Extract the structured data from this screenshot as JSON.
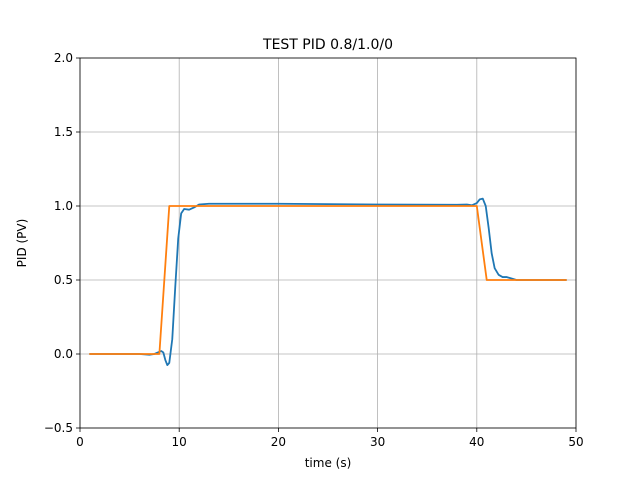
{
  "chart_data": {
    "type": "line",
    "title": "TEST PID 0.8/1.0/0",
    "xlabel": "time (s)",
    "ylabel": "PID (PV)",
    "xlim": [
      0,
      50
    ],
    "ylim": [
      -0.5,
      2.0
    ],
    "xticks": [
      0,
      10,
      20,
      30,
      40,
      50
    ],
    "xtick_labels": [
      "0",
      "10",
      "20",
      "30",
      "40",
      "50"
    ],
    "yticks": [
      -0.5,
      0.0,
      0.5,
      1.0,
      1.5,
      2.0
    ],
    "ytick_labels": [
      "−0.5",
      "0.0",
      "0.5",
      "1.0",
      "1.5",
      "2.0"
    ],
    "grid": true,
    "series": [
      {
        "color": "#1f77b4",
        "points": [
          [
            1,
            0.0
          ],
          [
            6,
            0.0
          ],
          [
            7,
            -0.005
          ],
          [
            7.5,
            0.0
          ],
          [
            8.0,
            0.015
          ],
          [
            8.2,
            0.02
          ],
          [
            8.4,
            0.01
          ],
          [
            8.6,
            -0.04
          ],
          [
            8.8,
            -0.075
          ],
          [
            9.0,
            -0.06
          ],
          [
            9.3,
            0.1
          ],
          [
            9.6,
            0.45
          ],
          [
            9.9,
            0.78
          ],
          [
            10.2,
            0.95
          ],
          [
            10.5,
            0.98
          ],
          [
            11.0,
            0.975
          ],
          [
            11.5,
            0.99
          ],
          [
            12.0,
            1.01
          ],
          [
            13.0,
            1.015
          ],
          [
            20.0,
            1.015
          ],
          [
            30.0,
            1.01
          ],
          [
            38.0,
            1.008
          ],
          [
            39.0,
            1.01
          ],
          [
            39.5,
            1.005
          ],
          [
            40.0,
            1.02
          ],
          [
            40.3,
            1.045
          ],
          [
            40.6,
            1.05
          ],
          [
            40.9,
            1.0
          ],
          [
            41.2,
            0.85
          ],
          [
            41.5,
            0.68
          ],
          [
            41.8,
            0.58
          ],
          [
            42.2,
            0.535
          ],
          [
            42.6,
            0.52
          ],
          [
            43.0,
            0.52
          ],
          [
            43.5,
            0.51
          ],
          [
            44.0,
            0.5
          ],
          [
            49,
            0.5
          ]
        ]
      },
      {
        "color": "#ff7f0e",
        "points": [
          [
            1,
            0.0
          ],
          [
            8,
            0.0
          ],
          [
            9,
            1.0
          ],
          [
            40,
            1.0
          ],
          [
            41,
            0.5
          ],
          [
            49,
            0.5
          ]
        ]
      }
    ]
  }
}
